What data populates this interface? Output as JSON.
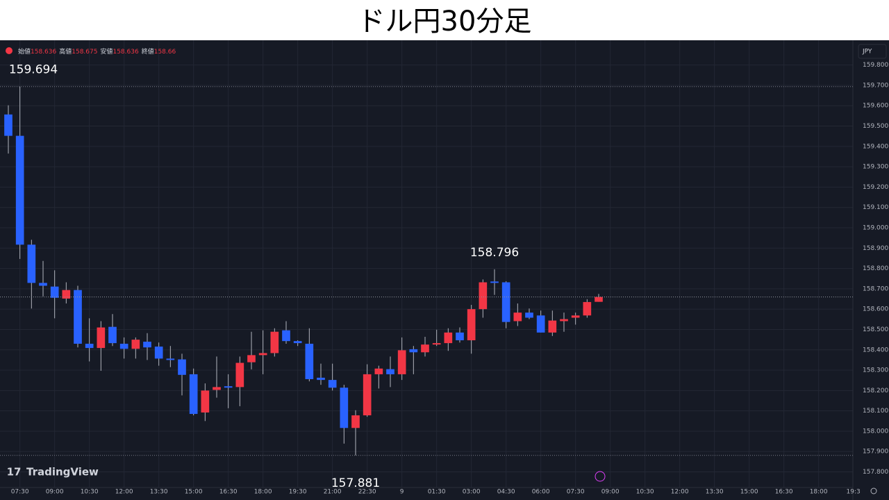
{
  "chart_data": {
    "type": "candlestick",
    "title": "ドル円30分足",
    "currency": "JPY",
    "brand": "TradingView",
    "ohlc_labels": [
      "始値",
      "高値",
      "安値",
      "終値"
    ],
    "up_color": "#f23645",
    "down_color": "#2962ff",
    "wick_color": "#b2b5be",
    "grid": true,
    "open": [
      159.557,
      159.452,
      158.917,
      158.729,
      158.711,
      158.652,
      158.694,
      158.43,
      158.409,
      158.513,
      158.43,
      158.405,
      158.44,
      158.416,
      158.357,
      158.353,
      158.28,
      158.092,
      158.203,
      158.221,
      158.217,
      158.339,
      158.374,
      158.384,
      158.496,
      158.443,
      158.43,
      158.263,
      158.252,
      158.214,
      158.016,
      158.078,
      158.28,
      158.305,
      158.28,
      158.403,
      158.388,
      158.426,
      158.433,
      158.485,
      158.447,
      158.6,
      158.736,
      158.732,
      158.541,
      158.583,
      158.569,
      158.485,
      158.541,
      158.558,
      158.569,
      158.636
    ],
    "high": [
      159.602,
      159.694,
      158.941,
      158.837,
      158.791,
      158.732,
      158.715,
      158.555,
      158.541,
      158.576,
      158.461,
      158.461,
      158.482,
      158.436,
      158.419,
      158.381,
      158.308,
      158.235,
      158.367,
      158.28,
      158.367,
      158.489,
      158.496,
      158.506,
      158.541,
      158.447,
      158.506,
      158.332,
      158.332,
      158.228,
      158.103,
      158.329,
      158.322,
      158.367,
      158.461,
      158.419,
      158.464,
      158.499,
      158.506,
      158.51,
      158.621,
      158.746,
      158.796,
      158.737,
      158.628,
      158.603,
      158.593,
      158.593,
      158.583,
      158.583,
      158.649,
      158.675
    ],
    "low": [
      159.365,
      158.847,
      158.603,
      158.663,
      158.555,
      158.628,
      158.412,
      158.343,
      158.297,
      158.419,
      158.357,
      158.357,
      158.35,
      158.322,
      158.315,
      158.176,
      158.078,
      158.05,
      158.165,
      158.113,
      158.123,
      158.304,
      158.28,
      158.367,
      158.43,
      158.419,
      158.245,
      158.228,
      158.2,
      157.939,
      157.881,
      158.071,
      158.21,
      158.217,
      158.252,
      158.28,
      158.367,
      158.419,
      158.395,
      158.436,
      158.381,
      158.558,
      158.67,
      158.506,
      158.517,
      158.551,
      158.485,
      158.468,
      158.489,
      158.524,
      158.558,
      158.636
    ],
    "close": [
      159.452,
      158.917,
      158.729,
      158.715,
      158.656,
      158.694,
      158.43,
      158.409,
      158.51,
      158.433,
      158.405,
      158.45,
      158.412,
      158.357,
      158.35,
      158.277,
      158.085,
      158.2,
      158.217,
      158.214,
      158.336,
      158.374,
      158.384,
      158.489,
      158.443,
      158.433,
      158.256,
      158.252,
      158.214,
      158.016,
      158.078,
      158.28,
      158.308,
      158.28,
      158.398,
      158.388,
      158.426,
      158.433,
      158.485,
      158.447,
      158.6,
      158.732,
      158.729,
      158.537,
      158.583,
      158.558,
      158.485,
      158.544,
      158.551,
      158.569,
      158.635,
      158.66
    ],
    "annotations": [
      159.694,
      158.796,
      157.881
    ],
    "xlim": [
      -0.72,
      72.96
    ],
    "xticks": [
      {
        "value": 1,
        "label": "07:30"
      },
      {
        "value": 4,
        "label": "09:00"
      },
      {
        "value": 7,
        "label": "10:30"
      },
      {
        "value": 10,
        "label": "12:00"
      },
      {
        "value": 13,
        "label": "13:30"
      },
      {
        "value": 16,
        "label": "15:00"
      },
      {
        "value": 19,
        "label": "16:30"
      },
      {
        "value": 22,
        "label": "18:00"
      },
      {
        "value": 25,
        "label": "19:30"
      },
      {
        "value": 28,
        "label": "21:00"
      },
      {
        "value": 31,
        "label": "22:30"
      },
      {
        "value": 34,
        "label": "9"
      },
      {
        "value": 37,
        "label": "01:30"
      },
      {
        "value": 40,
        "label": "03:00"
      },
      {
        "value": 43,
        "label": "04:30"
      },
      {
        "value": 46,
        "label": "06:00"
      },
      {
        "value": 49,
        "label": "07:30"
      },
      {
        "value": 52,
        "label": "09:00"
      },
      {
        "value": 55,
        "label": "10:30"
      },
      {
        "value": 58,
        "label": "12:00"
      },
      {
        "value": 61,
        "label": "13:30"
      },
      {
        "value": 64,
        "label": "15:00"
      },
      {
        "value": 67,
        "label": "16:30"
      },
      {
        "value": 70,
        "label": "18:00"
      },
      {
        "value": 73,
        "label": "19:3"
      }
    ],
    "ylim": [
      157.7233,
      159.9217
    ],
    "yticks": [
      {
        "value": 157.8,
        "label": "157.800"
      },
      {
        "value": 157.9,
        "label": "157.900"
      },
      {
        "value": 158.0,
        "label": "158.000"
      },
      {
        "value": 158.1,
        "label": "158.100"
      },
      {
        "value": 158.2,
        "label": "158.200"
      },
      {
        "value": 158.3,
        "label": "158.300"
      },
      {
        "value": 158.4,
        "label": "158.400"
      },
      {
        "value": 158.5,
        "label": "158.500"
      },
      {
        "value": 158.6,
        "label": "158.600"
      },
      {
        "value": 158.7,
        "label": "158.700"
      },
      {
        "value": 158.8,
        "label": "158.800"
      },
      {
        "value": 158.9,
        "label": "158.900"
      },
      {
        "value": 159.0,
        "label": "159.000"
      },
      {
        "value": 159.1,
        "label": "159.100"
      },
      {
        "value": 159.2,
        "label": "159.200"
      },
      {
        "value": 159.3,
        "label": "159.300"
      },
      {
        "value": 159.4,
        "label": "159.400"
      },
      {
        "value": 159.5,
        "label": "159.500"
      },
      {
        "value": 159.6,
        "label": "159.600"
      },
      {
        "value": 159.7,
        "label": "159.700"
      },
      {
        "value": 159.8,
        "label": "159.800"
      }
    ]
  }
}
